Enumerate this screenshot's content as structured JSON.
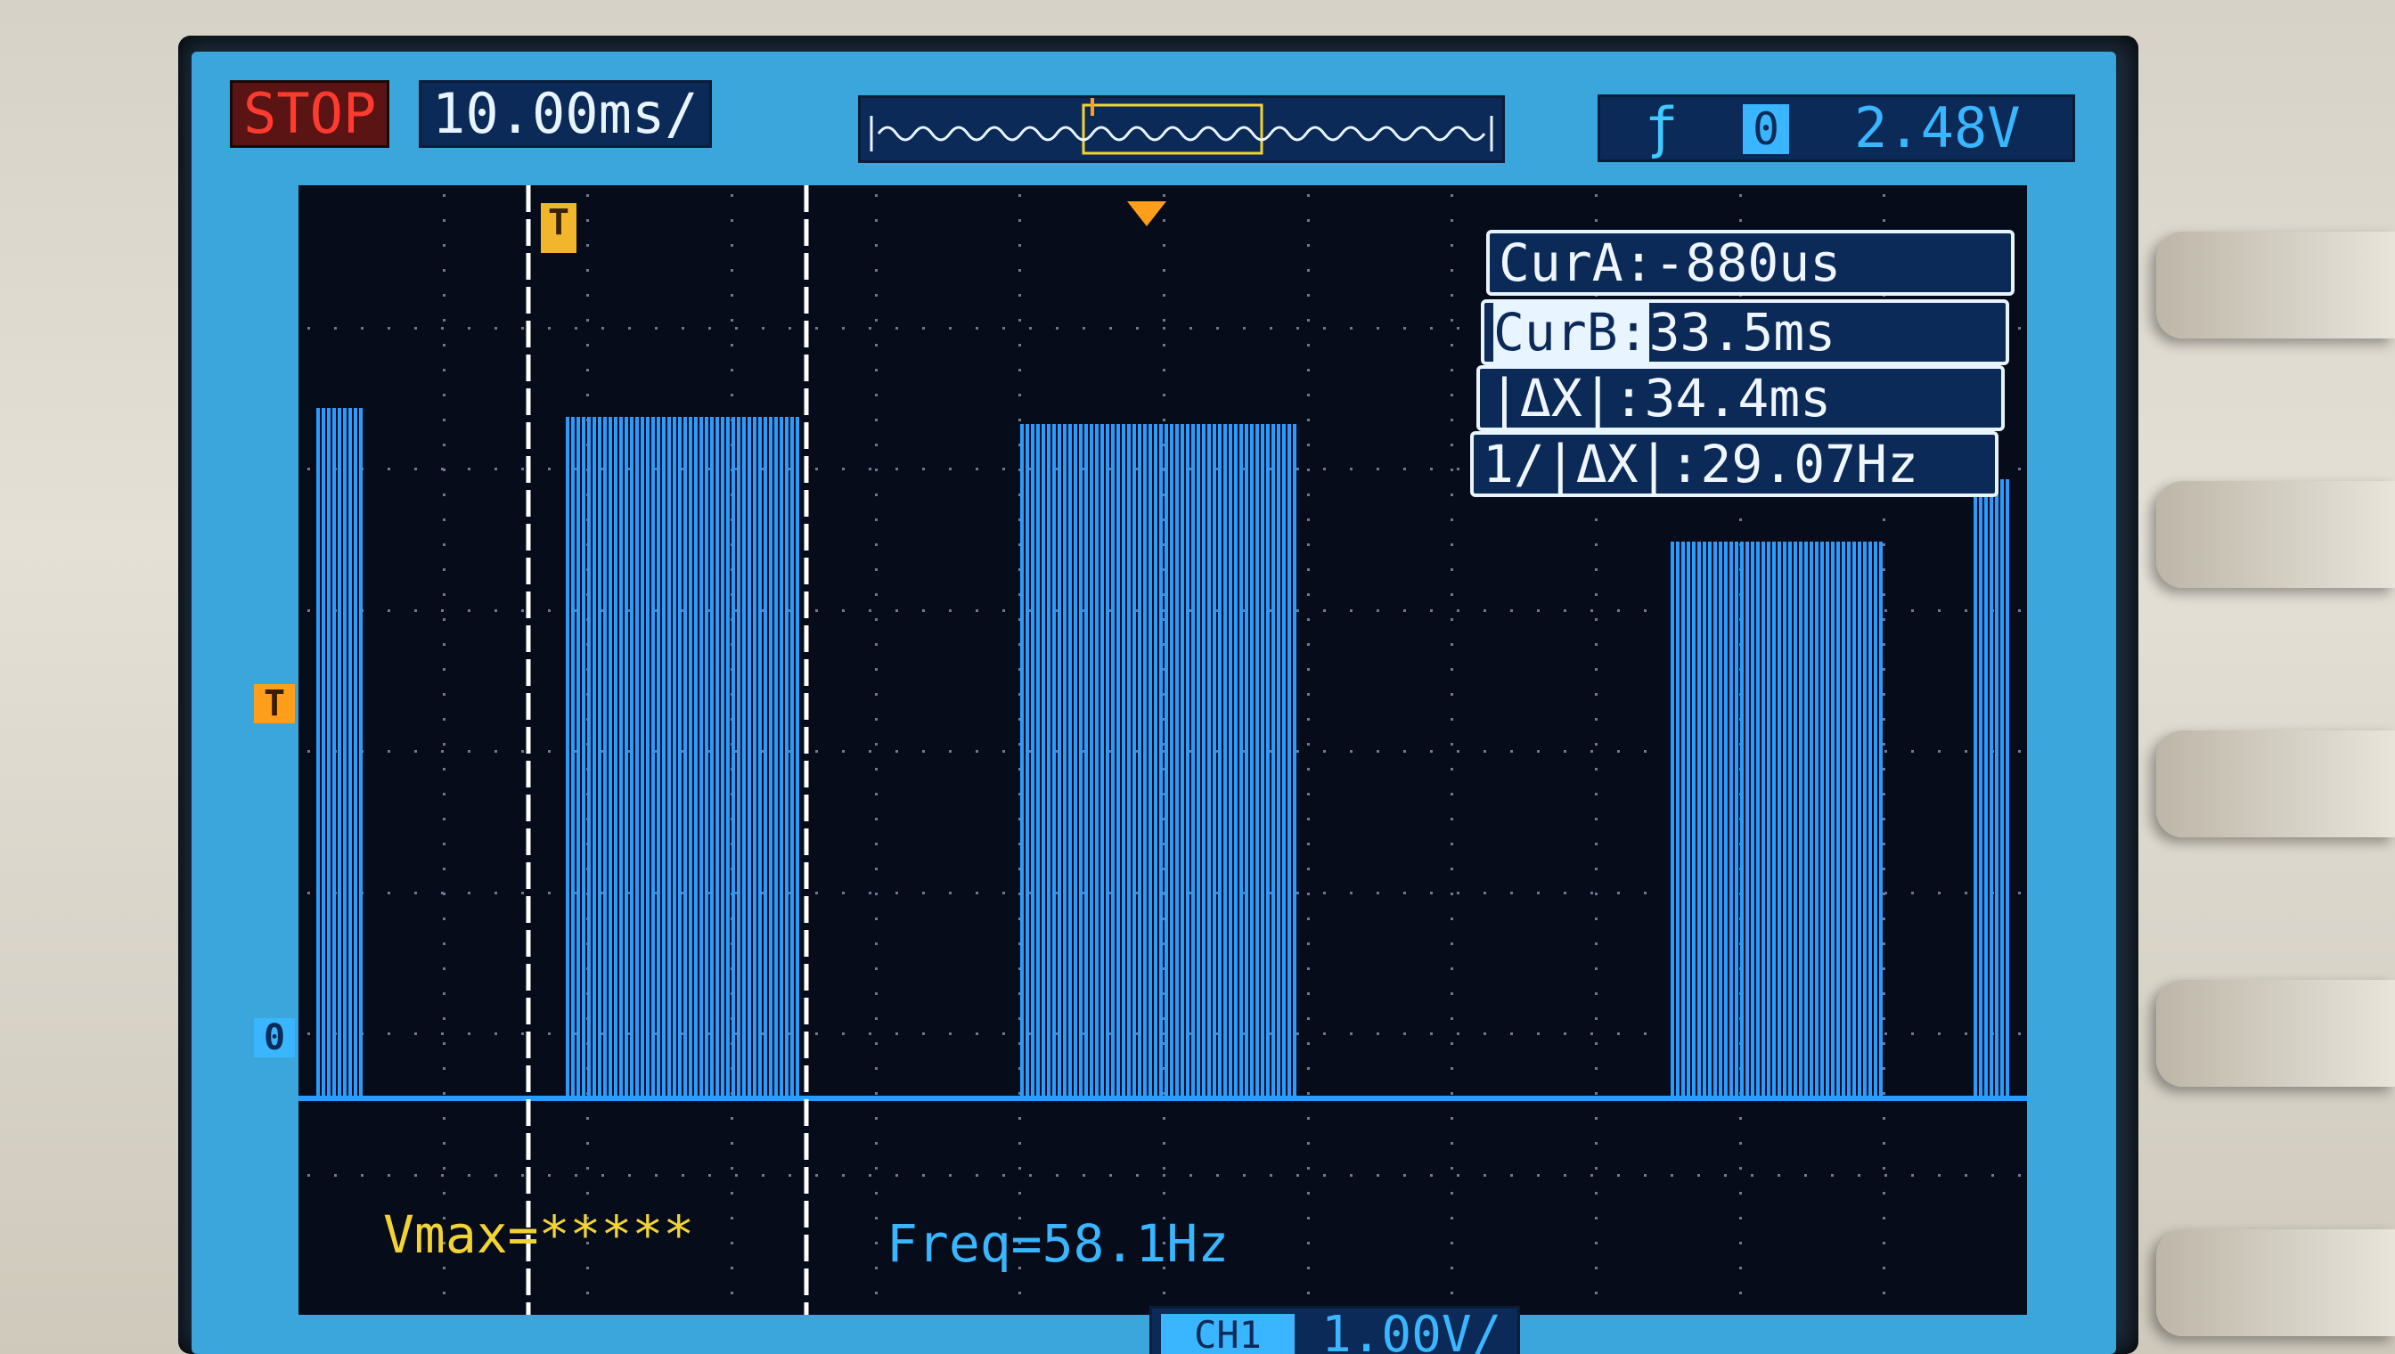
{
  "top_bar": {
    "run_status": "STOP",
    "timebase": "10.00ms/",
    "trigger_slope_icon": "rising-edge-icon",
    "trigger_channel": "0",
    "trigger_level": "2.48V"
  },
  "cursors": {
    "cur_a": "CurA:-880us",
    "cur_b_label": "CurB:",
    "cur_b_value": "33.5ms",
    "delta_x": "|ΔX|:34.4ms",
    "inv_delta_x": "1/|ΔX|:29.07Hz"
  },
  "measurements": {
    "vmax": "Vmax=*****",
    "freq": "Freq=58.1Hz"
  },
  "channel": {
    "badge": "CH1",
    "volts_per_div": "1.00V/"
  },
  "markers": {
    "trigger_position": "T",
    "trigger_level": "T",
    "ground": "0"
  },
  "colors": {
    "waveform": "#2a9bff",
    "run_status": "#ff3b30",
    "vmax_text": "#f2d335",
    "accent": "#39b6ff"
  }
}
